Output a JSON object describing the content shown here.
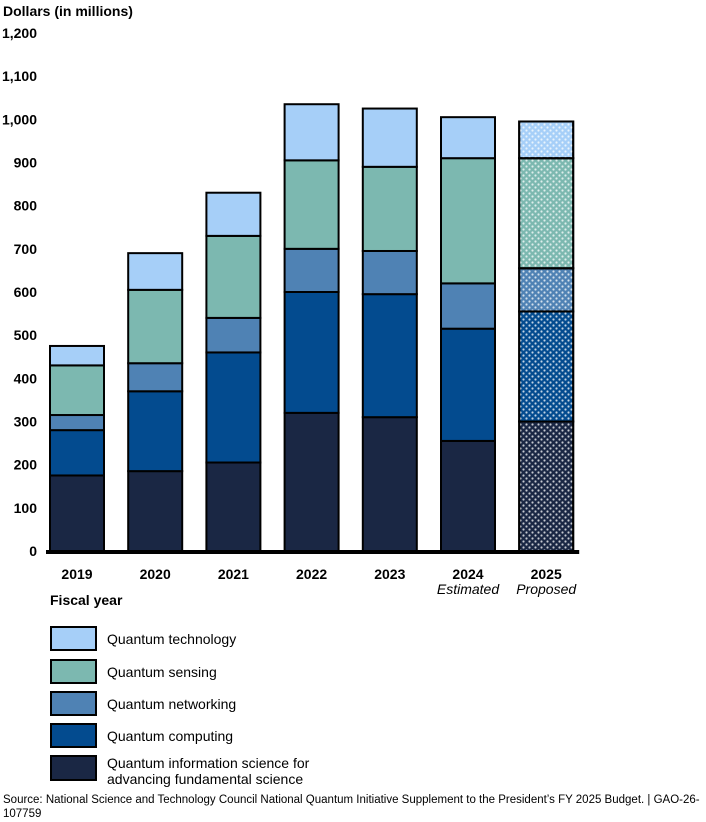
{
  "chart_data": {
    "type": "bar",
    "stacked": true,
    "ylabel": "Dollars (in millions)",
    "xlabel": "Fiscal year",
    "ylim": [
      0,
      1200
    ],
    "yticks": [
      0,
      100,
      200,
      300,
      400,
      500,
      600,
      700,
      800,
      900,
      1000,
      1100,
      1200
    ],
    "ytick_labels": [
      "0",
      "100",
      "200",
      "300",
      "400",
      "500",
      "600",
      "700",
      "800",
      "900",
      "1,000",
      "1,100",
      "1,200"
    ],
    "categories": [
      "2019",
      "2020",
      "2021",
      "2022",
      "2023",
      "2024",
      "2025"
    ],
    "category_sublabels": [
      "",
      "",
      "",
      "",
      "",
      "Estimated",
      "Proposed"
    ],
    "series": [
      {
        "name": "Quantum information science for advancing fundamental science",
        "color": "#1a2744",
        "values": [
          175,
          185,
          205,
          320,
          310,
          255,
          300
        ]
      },
      {
        "name": "Quantum computing",
        "color": "#034b8f",
        "values": [
          105,
          185,
          255,
          280,
          285,
          260,
          255
        ]
      },
      {
        "name": "Quantum networking",
        "color": "#4f82b4",
        "values": [
          35,
          65,
          80,
          100,
          100,
          105,
          100
        ]
      },
      {
        "name": "Quantum sensing",
        "color": "#7cb8b0",
        "values": [
          115,
          170,
          190,
          205,
          195,
          290,
          255
        ]
      },
      {
        "name": "Quantum technology",
        "color": "#a6cff8",
        "values": [
          45,
          85,
          100,
          130,
          135,
          95,
          85
        ]
      }
    ],
    "patterned_category": "2025"
  },
  "legend": [
    {
      "label": "Quantum technology",
      "color": "#a6cff8"
    },
    {
      "label": "Quantum sensing",
      "color": "#7cb8b0"
    },
    {
      "label": "Quantum networking",
      "color": "#4f82b4"
    },
    {
      "label": "Quantum computing",
      "color": "#034b8f"
    },
    {
      "label_line1": "Quantum information science for",
      "label_line2": "advancing fundamental science",
      "color": "#1a2744"
    }
  ],
  "source": "Source: National Science and Technology Council National Quantum Initiative Supplement to the President’s FY 2025 Budget.  |  GAO-26-107759"
}
